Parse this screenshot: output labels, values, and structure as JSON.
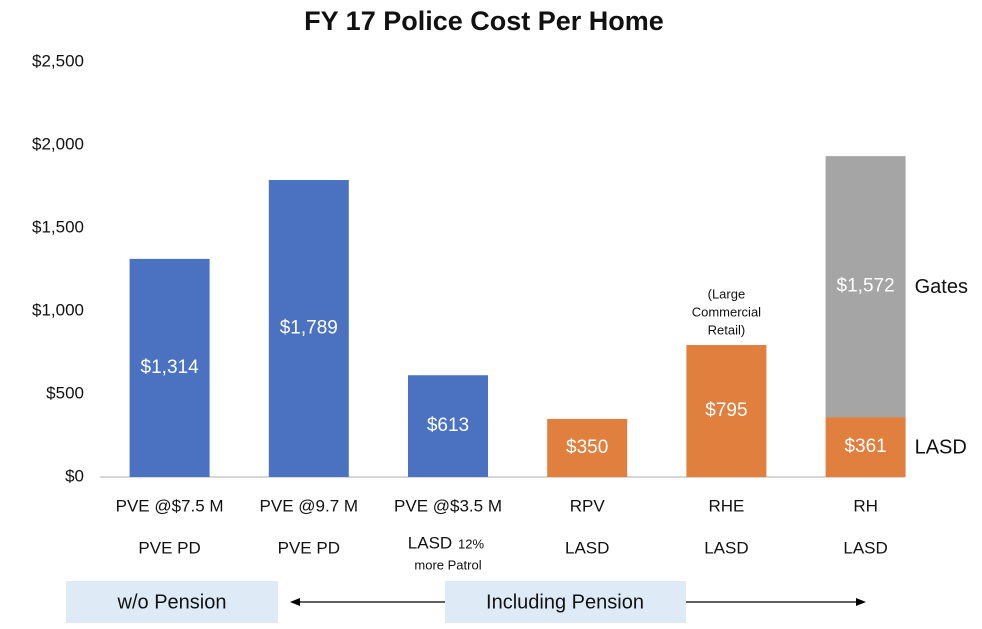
{
  "chart_data": {
    "type": "stacked_bar",
    "title": "FY 17 Police Cost Per Home",
    "categories": [
      "PVE @$7.5 M",
      "PVE @9.7 M",
      "PVE @$3.5 M",
      "RPV",
      "RHE",
      "RH"
    ],
    "sublabels": [
      "PVE PD",
      "PVE PD",
      "LASD",
      "LASD",
      "LASD",
      "LASD"
    ],
    "sublabel_notes": [
      null,
      null,
      [
        "12%",
        "more Patrol"
      ],
      null,
      null,
      null
    ],
    "series": [
      {
        "name": "LASD",
        "colors": [
          "#4a72c0",
          "#4a72c0",
          "#4a72c0",
          "#e07f3e",
          "#e07f3e",
          "#e07f3e"
        ],
        "values": [
          1314,
          1789,
          613,
          350,
          795,
          361
        ],
        "value_labels": [
          "$1,314",
          "$1,789",
          "$613",
          "$350",
          "$795",
          "$361"
        ]
      },
      {
        "name": "Gates",
        "color": "#a5a5a5",
        "values": [
          null,
          null,
          null,
          null,
          null,
          1572
        ],
        "value_labels": [
          null,
          null,
          null,
          null,
          null,
          "$1,572"
        ]
      }
    ],
    "ylim": [
      0,
      2500
    ],
    "yticks": [
      {
        "value": 0,
        "label": "$0"
      },
      {
        "value": 500,
        "label": "$500"
      },
      {
        "value": 1000,
        "label": "$1,000"
      },
      {
        "value": 1500,
        "label": "$1,500"
      },
      {
        "value": 2000,
        "label": "$2,000"
      },
      {
        "value": 2500,
        "label": "$2,500"
      }
    ],
    "annotations": [
      {
        "category": 4,
        "lines": [
          "(Large",
          "Commercial",
          "Retail)"
        ]
      }
    ],
    "footer_labels": [
      "w/o Pension",
      "Including Pension"
    ]
  }
}
